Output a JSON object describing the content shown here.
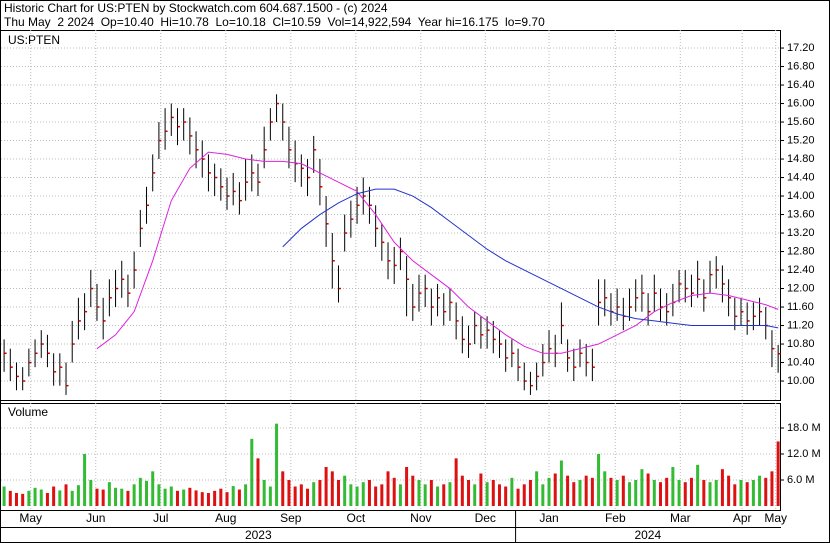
{
  "chart_data": {
    "type": "ohlc",
    "header": [
      "Historic Chart for US:PTEN by Stockwatch.com 604.687.1500 - (c) 2024",
      "Thu May  2 2024  Op=10.40  Hi=10.78  Lo=10.18  Cl=10.59  Vol=14,922,594  Year hi=16.175  lo=9.70"
    ],
    "symbol": "US:PTEN",
    "volume_title": "Volume",
    "grid": true,
    "bar_color": "#000000",
    "close_color": "#cc0000",
    "up_color": "#33bb33",
    "down_color": "#dd1111",
    "xlim": [
      -0.5,
      125.3
    ],
    "xticks": [
      {
        "value": 4.3,
        "label": "May"
      },
      {
        "value": 14.8,
        "label": "Jun"
      },
      {
        "value": 25.3,
        "label": "Jul"
      },
      {
        "value": 35.8,
        "label": "Aug"
      },
      {
        "value": 46.3,
        "label": "Sep"
      },
      {
        "value": 56.8,
        "label": "Oct"
      },
      {
        "value": 67.3,
        "label": "Nov"
      },
      {
        "value": 77.7,
        "label": "Dec"
      },
      {
        "value": 88,
        "label": "Jan"
      },
      {
        "value": 98.7,
        "label": "Feb"
      },
      {
        "value": 109.2,
        "label": "Mar"
      },
      {
        "value": 119.2,
        "label": "Apr"
      },
      {
        "value": 124.6,
        "label": "May"
      }
    ],
    "yearticks": [
      {
        "value": -0.5,
        "label": "2023"
      },
      {
        "value": 82.6,
        "label": "2024"
      }
    ],
    "ylim": [
      9.59,
      17.59
    ],
    "yticks": [
      {
        "value": 10,
        "label": "10.00"
      },
      {
        "value": 10.4,
        "label": "10.40"
      },
      {
        "value": 10.8,
        "label": "10.80"
      },
      {
        "value": 11.2,
        "label": "11.20"
      },
      {
        "value": 11.6,
        "label": "11.60"
      },
      {
        "value": 12,
        "label": "12.00"
      },
      {
        "value": 12.4,
        "label": "12.40"
      },
      {
        "value": 12.8,
        "label": "12.80"
      },
      {
        "value": 13.2,
        "label": "13.20"
      },
      {
        "value": 13.6,
        "label": "13.60"
      },
      {
        "value": 14,
        "label": "14.00"
      },
      {
        "value": 14.4,
        "label": "14.40"
      },
      {
        "value": 14.8,
        "label": "14.80"
      },
      {
        "value": 15.2,
        "label": "15.20"
      },
      {
        "value": 15.6,
        "label": "15.60"
      },
      {
        "value": 16,
        "label": "16.00"
      },
      {
        "value": 16.4,
        "label": "16.40"
      },
      {
        "value": 16.8,
        "label": "16.80"
      },
      {
        "value": 17.2,
        "label": "17.20"
      }
    ],
    "vol_ylim": [
      -0.92,
      23.77
    ],
    "vol_yticks": [
      {
        "value": 6,
        "label": "6.0 M"
      },
      {
        "value": 12,
        "label": "12.0 M"
      },
      {
        "value": 18,
        "label": "18.0 M"
      }
    ],
    "high": [
      10.9,
      10.7,
      10.4,
      10.3,
      10.7,
      10.9,
      11.1,
      11.0,
      10.6,
      10.6,
      10.4,
      11.3,
      11.8,
      11.9,
      12.4,
      12.1,
      11.8,
      12.2,
      12.4,
      12.6,
      12.3,
      12.8,
      13.7,
      14.2,
      14.9,
      15.6,
      15.9,
      16.0,
      15.9,
      15.9,
      15.7,
      15.4,
      15.2,
      14.9,
      14.7,
      14.6,
      14.4,
      14.5,
      14.3,
      14.8,
      14.9,
      14.7,
      15.5,
      15.9,
      16.2,
      16.0,
      15.5,
      15.2,
      14.9,
      14.8,
      15.3,
      14.8,
      14.0,
      13.2,
      12.5,
      13.6,
      13.9,
      14.2,
      14.4,
      14.2,
      13.8,
      13.4,
      13.0,
      12.9,
      13.1,
      12.7,
      12.1,
      12.3,
      12.3,
      12.0,
      12.1,
      11.9,
      12.0,
      11.7,
      11.4,
      11.2,
      11.5,
      11.4,
      11.4,
      11.3,
      11.1,
      10.9,
      10.9,
      10.7,
      10.4,
      10.2,
      10.4,
      10.8,
      11.1,
      11.0,
      11.7,
      10.9,
      10.7,
      10.9,
      10.8,
      10.7,
      12.2,
      12.2,
      11.9,
      12.0,
      11.8,
      12.0,
      12.2,
      12.3,
      11.9,
      12.3,
      12.0,
      11.9,
      12.1,
      12.4,
      12.4,
      12.3,
      12.6,
      12.2,
      12.6,
      12.7,
      12.5,
      12.2,
      11.8,
      11.8,
      11.7,
      11.7,
      11.8,
      11.6,
      11.1,
      10.78
    ],
    "low": [
      10.2,
      10.0,
      9.8,
      9.8,
      10.1,
      10.3,
      10.5,
      10.3,
      9.9,
      9.9,
      9.7,
      10.4,
      10.9,
      11.1,
      11.6,
      11.3,
      10.9,
      11.4,
      11.6,
      11.8,
      11.6,
      12.0,
      12.9,
      13.4,
      14.1,
      14.8,
      15.0,
      15.3,
      15.1,
      15.2,
      14.9,
      14.6,
      14.4,
      14.1,
      14.0,
      13.9,
      13.7,
      13.8,
      13.6,
      13.9,
      14.1,
      14.0,
      14.6,
      15.2,
      15.6,
      15.2,
      14.6,
      14.3,
      14.2,
      14.0,
      14.5,
      13.8,
      12.9,
      12.0,
      11.7,
      12.8,
      13.1,
      13.4,
      13.6,
      13.4,
      12.9,
      12.6,
      12.2,
      12.1,
      12.4,
      11.4,
      11.3,
      11.5,
      11.6,
      11.2,
      11.4,
      11.2,
      11.3,
      10.9,
      10.6,
      10.5,
      10.8,
      10.7,
      10.7,
      10.6,
      10.5,
      10.2,
      10.3,
      10.0,
      9.8,
      9.7,
      9.8,
      10.1,
      10.4,
      10.3,
      10.8,
      10.2,
      10.0,
      10.3,
      10.1,
      10.0,
      11.2,
      11.4,
      11.2,
      11.3,
      11.1,
      11.3,
      11.5,
      11.5,
      11.2,
      11.5,
      11.3,
      11.2,
      11.4,
      11.7,
      11.7,
      11.6,
      11.8,
      11.5,
      11.9,
      12.0,
      11.7,
      11.4,
      11.1,
      11.2,
      11.0,
      11.1,
      11.2,
      10.9,
      10.3,
      10.18
    ],
    "close": [
      10.6,
      10.3,
      10.1,
      10.0,
      10.4,
      10.6,
      10.8,
      10.6,
      10.2,
      10.3,
      9.9,
      10.8,
      11.3,
      11.5,
      12.0,
      11.6,
      11.3,
      11.8,
      12.0,
      12.2,
      11.9,
      12.4,
      13.3,
      13.8,
      14.5,
      15.2,
      15.4,
      15.7,
      15.5,
      15.6,
      15.3,
      15.0,
      14.8,
      14.5,
      14.4,
      14.2,
      14.0,
      14.1,
      13.9,
      14.3,
      14.5,
      14.3,
      15.0,
      15.6,
      16.0,
      15.6,
      15.0,
      14.7,
      14.6,
      14.4,
      15.0,
      14.2,
      13.4,
      12.6,
      12.0,
      13.2,
      13.5,
      13.8,
      14.0,
      13.8,
      13.3,
      13.0,
      12.6,
      12.5,
      12.8,
      12.2,
      11.6,
      11.9,
      12.0,
      11.6,
      11.8,
      11.5,
      11.7,
      11.3,
      10.9,
      10.8,
      11.2,
      11.0,
      11.1,
      10.9,
      10.8,
      10.5,
      10.6,
      10.3,
      10.0,
      9.9,
      10.1,
      10.4,
      10.7,
      10.6,
      11.2,
      10.5,
      10.3,
      10.6,
      10.4,
      10.3,
      11.7,
      11.8,
      11.5,
      11.6,
      11.4,
      11.6,
      11.8,
      11.9,
      11.5,
      11.9,
      11.6,
      11.5,
      11.7,
      12.1,
      12.0,
      11.9,
      12.2,
      11.8,
      12.3,
      12.4,
      12.1,
      11.8,
      11.4,
      11.5,
      11.3,
      11.4,
      11.5,
      11.2,
      10.7,
      10.59
    ],
    "volume": [
      4.5,
      3.5,
      3.0,
      2.8,
      3.5,
      4.2,
      3.8,
      3.0,
      4.5,
      3.6,
      5.0,
      3.5,
      4.8,
      12.0,
      6.0,
      4.0,
      3.8,
      5.5,
      4.2,
      4.0,
      3.5,
      5.0,
      6.5,
      5.8,
      8.0,
      5.0,
      4.0,
      4.5,
      3.5,
      3.8,
      4.2,
      3.6,
      3.2,
      3.0,
      3.5,
      4.0,
      3.2,
      4.6,
      3.8,
      5.0,
      15.5,
      11.0,
      6.0,
      4.5,
      19.0,
      8.0,
      6.0,
      4.5,
      5.0,
      4.0,
      5.5,
      6.0,
      9.0,
      8.0,
      6.0,
      7.0,
      5.0,
      4.5,
      5.5,
      6.0,
      4.5,
      5.0,
      8.0,
      6.5,
      5.0,
      9.0,
      7.0,
      6.0,
      5.0,
      6.0,
      4.5,
      5.0,
      5.5,
      11.0,
      7.0,
      6.0,
      5.0,
      7.5,
      5.5,
      6.0,
      5.0,
      4.5,
      6.5,
      4.0,
      5.0,
      6.0,
      8.0,
      5.0,
      6.5,
      7.5,
      10.5,
      7.0,
      5.5,
      6.0,
      7.0,
      6.5,
      12.0,
      8.0,
      6.5,
      6.0,
      7.0,
      5.5,
      6.0,
      8.5,
      7.5,
      6.0,
      5.5,
      6.5,
      9.0,
      6.0,
      5.5,
      6.5,
      9.5,
      6.0,
      5.5,
      6.0,
      8.5,
      7.0,
      5.0,
      6.0,
      5.5,
      6.0,
      7.0,
      6.5,
      8.0,
      14.9
    ],
    "ma": [
      {
        "color": "#dd22dd",
        "x": [
          15,
          18,
          21,
          24,
          27,
          30,
          33,
          36,
          39,
          42,
          45,
          48,
          51,
          54,
          57,
          60,
          63,
          66,
          69,
          72,
          75,
          78,
          81,
          84,
          87,
          90,
          93,
          96,
          99,
          102,
          105,
          108,
          111,
          114,
          117,
          120,
          123,
          125
        ],
        "values": [
          10.7,
          11.0,
          11.5,
          12.6,
          13.9,
          14.6,
          14.95,
          14.9,
          14.8,
          14.75,
          14.75,
          14.7,
          14.5,
          14.3,
          14.1,
          13.6,
          13.0,
          12.6,
          12.3,
          12.0,
          11.6,
          11.3,
          11.0,
          10.75,
          10.6,
          10.6,
          10.7,
          10.8,
          11.0,
          11.2,
          11.5,
          11.7,
          11.85,
          11.9,
          11.85,
          11.75,
          11.65,
          11.55
        ]
      },
      {
        "color": "#2233cc",
        "x": [
          45,
          48,
          51,
          54,
          57,
          60,
          63,
          66,
          69,
          72,
          75,
          78,
          81,
          84,
          87,
          90,
          93,
          96,
          99,
          102,
          105,
          108,
          111,
          114,
          117,
          120,
          123,
          125
        ],
        "values": [
          12.9,
          13.3,
          13.6,
          13.85,
          14.05,
          14.15,
          14.15,
          14.0,
          13.75,
          13.45,
          13.15,
          12.85,
          12.6,
          12.4,
          12.2,
          12.0,
          11.8,
          11.6,
          11.45,
          11.35,
          11.3,
          11.25,
          11.2,
          11.2,
          11.2,
          11.2,
          11.2,
          11.15
        ]
      }
    ]
  }
}
